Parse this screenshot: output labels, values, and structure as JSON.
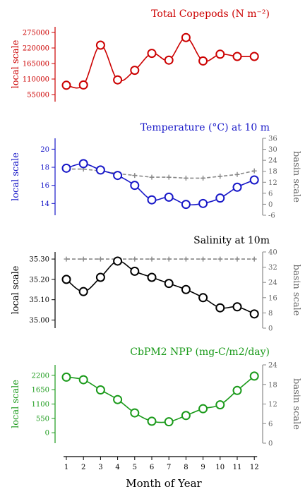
{
  "x_axis": {
    "label": "Month of Year",
    "ticks": [
      "1",
      "2",
      "3",
      "4",
      "5",
      "6",
      "7",
      "8",
      "9",
      "10",
      "11",
      "12"
    ]
  },
  "chart_data": [
    {
      "type": "line",
      "title": "Total Copepods (N m⁻²)",
      "color": "#cc0000",
      "x": [
        1,
        2,
        3,
        4,
        5,
        6,
        7,
        8,
        9,
        10,
        11,
        12
      ],
      "ylabel": "local scale",
      "ylim": [
        30000,
        295000
      ],
      "yticks": [
        55000,
        110000,
        165000,
        220000,
        275000
      ],
      "ytick_labels": [
        "55000",
        "110000",
        "165000",
        "220000",
        "275000"
      ],
      "series": [
        {
          "values": [
            88000,
            89000,
            230000,
            107000,
            141000,
            201000,
            177000,
            257000,
            174000,
            198000,
            190000,
            190000
          ],
          "color": "#cc0000",
          "style": "solid",
          "marker": "circle"
        }
      ]
    },
    {
      "type": "line",
      "title": "Temperature (°C) at 10 m",
      "color": "#1818c8",
      "x": [
        1,
        2,
        3,
        4,
        5,
        6,
        7,
        8,
        9,
        10,
        11,
        12
      ],
      "ylabel": "local scale",
      "ylim": [
        12.7,
        21.2
      ],
      "yticks": [
        14,
        16,
        18,
        20
      ],
      "ytick_labels": [
        "14",
        "16",
        "18",
        "20"
      ],
      "y2label": "basin scale",
      "y2lim": [
        -6,
        36
      ],
      "y2ticks": [
        -6,
        0,
        6,
        12,
        18,
        24,
        30,
        36
      ],
      "y2tick_labels": [
        "-6",
        "0",
        "6",
        "12",
        "18",
        "24",
        "30",
        "36"
      ],
      "series": [
        {
          "values": [
            17.9,
            18.4,
            17.7,
            17.1,
            16.0,
            14.4,
            14.7,
            13.9,
            14.0,
            14.6,
            15.8,
            16.6
          ],
          "color": "#1818c8",
          "style": "solid",
          "marker": "circle"
        },
        {
          "values": [
            17.8,
            17.8,
            17.6,
            17.3,
            17.1,
            16.9,
            16.9,
            16.8,
            16.8,
            17.0,
            17.2,
            17.6
          ],
          "color": "#888888",
          "style": "dashed",
          "marker": "plus",
          "axis": "y"
        }
      ]
    },
    {
      "type": "line",
      "title": "Salinity at 10m",
      "color": "#000000",
      "x": [
        1,
        2,
        3,
        4,
        5,
        6,
        7,
        8,
        9,
        10,
        11,
        12
      ],
      "ylabel": "local scale",
      "ylim": [
        34.96,
        35.335
      ],
      "yticks": [
        35.0,
        35.1,
        35.2,
        35.3
      ],
      "ytick_labels": [
        "35.00",
        "35.10",
        "35.20",
        "35.30"
      ],
      "y2label": "basin scale",
      "y2lim": [
        0,
        40
      ],
      "y2ticks": [
        0,
        8,
        16,
        24,
        32,
        40
      ],
      "y2tick_labels": [
        "0",
        "8",
        "16",
        "24",
        "32",
        "40"
      ],
      "series": [
        {
          "values": [
            35.2,
            35.14,
            35.21,
            35.29,
            35.24,
            35.21,
            35.18,
            35.15,
            35.11,
            35.06,
            35.065,
            35.03
          ],
          "color": "#000000",
          "style": "solid",
          "marker": "circle"
        },
        {
          "values": [
            35.3,
            35.3,
            35.3,
            35.3,
            35.3,
            35.3,
            35.3,
            35.3,
            35.3,
            35.3,
            35.3,
            35.3
          ],
          "color": "#888888",
          "style": "dashed",
          "marker": "plus",
          "axis": "y"
        }
      ]
    },
    {
      "type": "line",
      "title": "CbPM2 NPP (mg-C/m2/day)",
      "color": "#1a9a1a",
      "x": [
        1,
        2,
        3,
        4,
        5,
        6,
        7,
        8,
        9,
        10,
        11,
        12
      ],
      "ylabel": "local scale",
      "ylim": [
        -400,
        2600
      ],
      "yticks": [
        0,
        550,
        1100,
        1650,
        2200
      ],
      "ytick_labels": [
        "0",
        "550",
        "1100",
        "1650",
        "2200"
      ],
      "y2label": "basin scale",
      "y2lim": [
        0,
        24
      ],
      "y2ticks": [
        0,
        6,
        12,
        18,
        24
      ],
      "y2tick_labels": [
        "0",
        "6",
        "12",
        "18",
        "24"
      ],
      "series": [
        {
          "values": [
            2130,
            2030,
            1640,
            1270,
            760,
            440,
            420,
            660,
            920,
            1070,
            1620,
            2170
          ],
          "color": "#1a9a1a",
          "style": "solid",
          "marker": "circle"
        }
      ]
    }
  ]
}
